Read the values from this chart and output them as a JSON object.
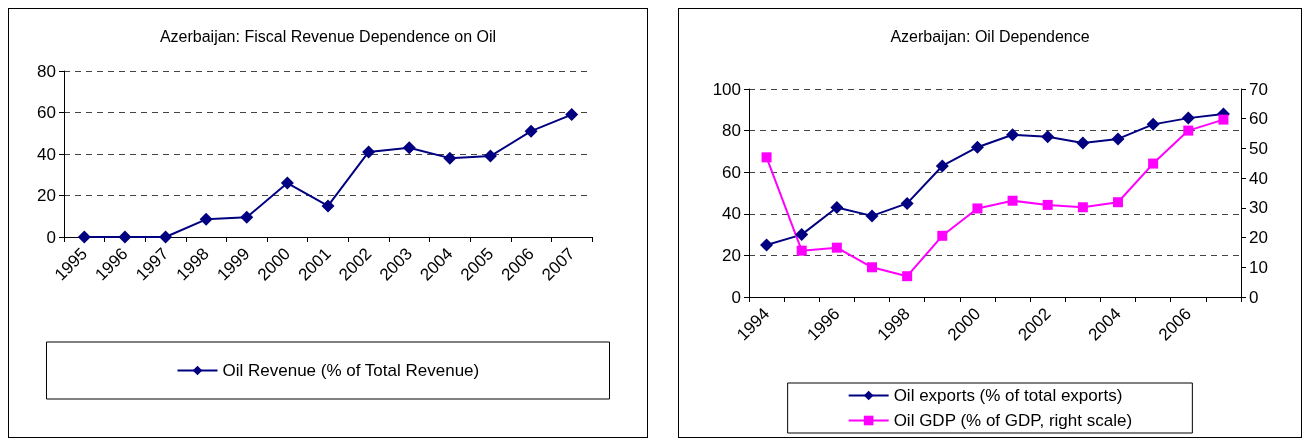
{
  "chart_data": [
    {
      "type": "line",
      "title": "Azerbaijan: Fiscal Revenue Dependence on Oil",
      "categories": [
        "1995",
        "1996",
        "1997",
        "1998",
        "1999",
        "2000",
        "2001",
        "2002",
        "2003",
        "2004",
        "2005",
        "2006",
        "2007"
      ],
      "series": [
        {
          "name": "Oil Revenue (% of Total Revenue)",
          "color": "#000080",
          "marker": "diamond",
          "values": [
            0,
            0,
            0,
            8.5,
            9.5,
            26,
            15,
            41,
            43,
            38,
            39,
            51,
            59
          ]
        }
      ],
      "ylim": [
        0,
        80
      ],
      "yticks": [
        0,
        20,
        40,
        60,
        80
      ],
      "grid": "y",
      "legend": "bottom",
      "line_style": "solid"
    },
    {
      "type": "line",
      "title": "Azerbaijan: Oil Dependence",
      "categories": [
        "1994",
        null,
        "1996",
        null,
        "1998",
        null,
        "2000",
        null,
        "2002",
        null,
        "2004",
        null,
        "2006",
        null
      ],
      "series": [
        {
          "name": "Oil exports (% of total exports)",
          "color": "#000080",
          "marker": "diamond",
          "values": [
            25,
            30,
            43,
            39,
            45,
            63,
            72,
            78,
            77,
            74,
            76,
            83,
            86,
            88
          ]
        },
        {
          "name": "Oil GDP (% of GDP, right scale)",
          "color": "#ff00ff",
          "marker": "square",
          "axis": "y2",
          "values": [
            47,
            15.6,
            16.6,
            10,
            7,
            20.6,
            29.8,
            32.4,
            31,
            30.2,
            31.9,
            44.9,
            56,
            59.7
          ]
        }
      ],
      "ylim": [
        0,
        100
      ],
      "yticks": [
        0,
        20,
        40,
        60,
        80,
        100
      ],
      "y2lim": [
        0,
        70
      ],
      "y2ticks": [
        0,
        10,
        20,
        30,
        40,
        50,
        60,
        70
      ],
      "grid": "y",
      "legend": "bottom",
      "line_style": "solid"
    }
  ]
}
